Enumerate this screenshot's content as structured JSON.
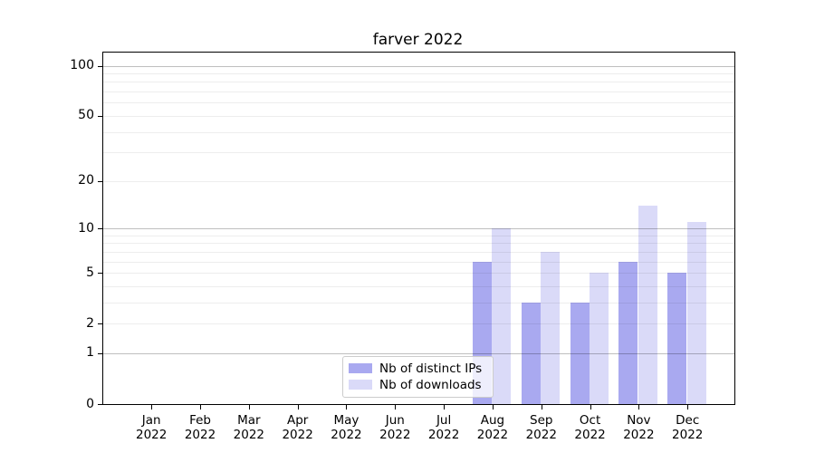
{
  "chart_data": {
    "type": "bar",
    "title": "farver 2022",
    "categories": [
      "Jan 2022",
      "Feb 2022",
      "Mar 2022",
      "Apr 2022",
      "May 2022",
      "Jun 2022",
      "Jul 2022",
      "Aug 2022",
      "Sep 2022",
      "Oct 2022",
      "Nov 2022",
      "Dec 2022"
    ],
    "series": [
      {
        "name": "Nb of distinct IPs",
        "color": "#a9a9f0",
        "values": [
          0,
          0,
          0,
          0,
          0,
          0,
          0,
          6,
          3,
          3,
          6,
          5
        ]
      },
      {
        "name": "Nb of downloads",
        "color": "#dadaf8",
        "values": [
          0,
          0,
          0,
          0,
          0,
          0,
          0,
          10,
          7,
          5,
          14,
          11
        ]
      }
    ],
    "y_scale": "log1p",
    "ylim": [
      0,
      120
    ],
    "y_ticks": [
      0,
      1,
      2,
      5,
      10,
      20,
      50,
      100
    ],
    "y_major_gridlines": [
      1,
      10,
      100
    ],
    "y_minor_gridlines": [
      2,
      3,
      4,
      5,
      6,
      7,
      8,
      9,
      20,
      30,
      40,
      50,
      60,
      70,
      80,
      90
    ],
    "grid": true,
    "legend_position": "lower center",
    "colors": {
      "background": "#ffffff",
      "spine": "#000000",
      "text": "#000000",
      "major_grid": "rgba(0,0,0,0.25)",
      "minor_grid": "rgba(0,0,0,0.07)"
    }
  }
}
